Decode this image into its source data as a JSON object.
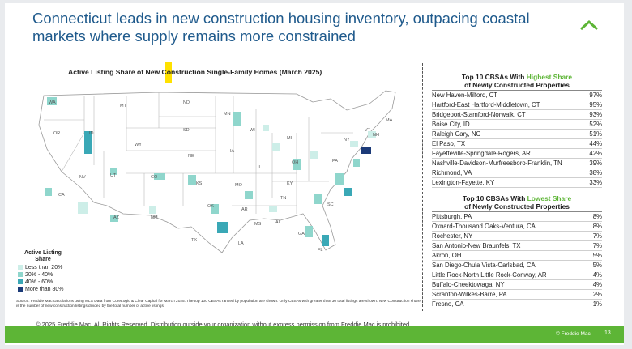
{
  "slide": {
    "title": "Connecticut leads in new construction housing inventory, outpacing coastal markets where supply remains more constrained",
    "logo_icon": "freddie-mac-roof-icon",
    "accent_color": "#5db536",
    "title_color": "#1f5a8c"
  },
  "map": {
    "title": "Active Listing Share of New Construction Single-Family Homes (March 2025)",
    "title_highlight_word": "Ne",
    "legend": {
      "title": "Active Listing Share",
      "items": [
        {
          "label": "Less than 20%",
          "color": "#cdeee8"
        },
        {
          "label": "20% - 40%",
          "color": "#8fd6cc"
        },
        {
          "label": "40% - 60%",
          "color": "#3aa8b6"
        },
        {
          "label": "More than 80%",
          "color": "#1b3a78"
        }
      ]
    },
    "state_labels": [
      "WA",
      "MT",
      "ND",
      "MN",
      "OR",
      "ID",
      "SD",
      "WI",
      "NY",
      "VT",
      "NH",
      "MA",
      "WY",
      "MI",
      "NE",
      "IA",
      "PA",
      "IL",
      "OH",
      "NV",
      "UT",
      "CO",
      "KS",
      "MO",
      "KY",
      "CA",
      "AZ",
      "NM",
      "OK",
      "AR",
      "TN",
      "SC",
      "MS",
      "AL",
      "GA",
      "TX",
      "LA",
      "FL"
    ]
  },
  "highest": {
    "title": "Top 10 CBSAs With",
    "title_emph": "Highest Share",
    "subtitle": "of Newly Constructed Properties",
    "rows": [
      {
        "name": "New Haven-Milford, CT",
        "pct": "97%"
      },
      {
        "name": "Hartford-East Hartford-Middletown, CT",
        "pct": "95%"
      },
      {
        "name": "Bridgeport-Stamford-Norwalk, CT",
        "pct": "93%"
      },
      {
        "name": "Boise City, ID",
        "pct": "52%"
      },
      {
        "name": "Raleigh Cary, NC",
        "pct": "51%"
      },
      {
        "name": "El Paso, TX",
        "pct": "44%"
      },
      {
        "name": "Fayetteville-Springdale-Rogers, AR",
        "pct": "42%"
      },
      {
        "name": "Nashville-Davidson-Murfreesboro-Franklin, TN",
        "pct": "39%"
      },
      {
        "name": "Richmond, VA",
        "pct": "38%"
      },
      {
        "name": "Lexington-Fayette, KY",
        "pct": "33%"
      }
    ]
  },
  "lowest": {
    "title": "Top 10 CBSAs With",
    "title_emph": "Lowest Share",
    "subtitle": "of Newly Constructed Properties",
    "rows": [
      {
        "name": "Pittsburgh, PA",
        "pct": "8%"
      },
      {
        "name": "Oxnard-Thousand Oaks-Ventura, CA",
        "pct": "8%"
      },
      {
        "name": "Rochester, NY",
        "pct": "7%"
      },
      {
        "name": "San Antonio-New Braunfels, TX",
        "pct": "7%"
      },
      {
        "name": "Akron, OH",
        "pct": "5%"
      },
      {
        "name": "San Diego-Chula Vista-Carlsbad, CA",
        "pct": "5%"
      },
      {
        "name": "Little Rock-North Little Rock-Conway, AR",
        "pct": "4%"
      },
      {
        "name": "Buffalo-Cheektowaga, NY",
        "pct": "4%"
      },
      {
        "name": "Scranton-Wilkes-Barre, PA",
        "pct": "2%"
      },
      {
        "name": "Fresno, CA",
        "pct": "1%"
      }
    ]
  },
  "source": "Source: Freddie Mac calculations using MLS Data from CoreLogic & Clear Capital for March 2025. The top 100 CBSAs ranked by population are shown. Only CBSAs with greater than 30 total listings are shown. New Construction share is the number of new construction listings divided by the total number of active listings.",
  "copyright": "© 2025 Freddie Mac. All Rights Reserved. Distribution outside your organization without express permission from Freddie Mac is prohibited.",
  "footer": {
    "brand": "© Freddie Mac",
    "page": "13"
  }
}
